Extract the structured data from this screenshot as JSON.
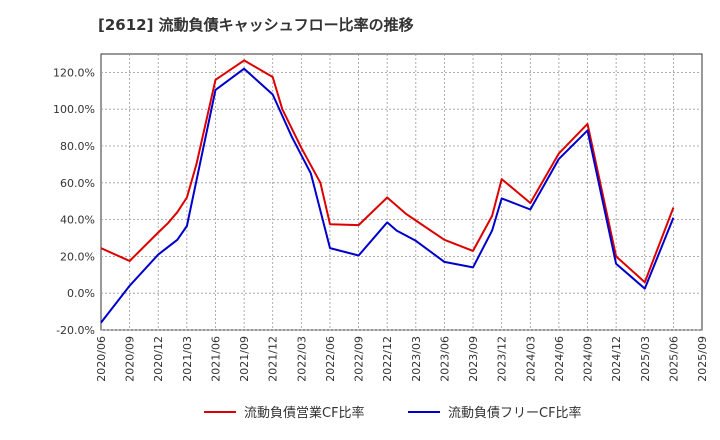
{
  "chart_data": {
    "type": "line",
    "title": "[2612]  流動負債キャッシュフロー比率の推移",
    "xlabel": "",
    "ylabel": "",
    "ylim": [
      -20,
      130
    ],
    "yticks": [
      -20,
      0,
      20,
      40,
      60,
      80,
      100,
      120
    ],
    "ytick_labels": [
      "-20.0%",
      "0.0%",
      "20.0%",
      "40.0%",
      "60.0%",
      "80.0%",
      "100.0%",
      "120.0%"
    ],
    "xtick_labels": [
      "2020/06",
      "2020/09",
      "2020/12",
      "2021/03",
      "2021/06",
      "2021/09",
      "2021/12",
      "2022/03",
      "2022/06",
      "2022/09",
      "2022/12",
      "2023/03",
      "2023/06",
      "2023/09",
      "2023/12",
      "2024/03",
      "2024/06",
      "2024/09",
      "2024/12",
      "2025/03",
      "2025/06",
      "2025/09"
    ],
    "grid": true,
    "legend_position": "bottom",
    "series": [
      {
        "name": "流動負債営業CF比率",
        "color": "#dd0000",
        "points": [
          [
            "2020/06",
            24.5
          ],
          [
            "2020/09",
            17.5
          ],
          [
            "2020/12",
            33
          ],
          [
            "2021/01",
            38
          ],
          [
            "2021/02",
            44
          ],
          [
            "2021/03",
            52
          ],
          [
            "2021/04",
            70
          ],
          [
            "2021/06",
            116
          ],
          [
            "2021/09",
            126.5
          ],
          [
            "2021/12",
            117.5
          ],
          [
            "2022/01",
            100
          ],
          [
            "2022/03",
            79
          ],
          [
            "2022/05",
            60
          ],
          [
            "2022/06",
            37.5
          ],
          [
            "2022/09",
            37
          ],
          [
            "2022/12",
            52
          ],
          [
            "2023/02",
            43
          ],
          [
            "2023/03",
            39.5
          ],
          [
            "2023/06",
            29
          ],
          [
            "2023/09",
            23
          ],
          [
            "2023/11",
            42
          ],
          [
            "2023/12",
            62
          ],
          [
            "2024/03",
            49
          ],
          [
            "2024/06",
            76
          ],
          [
            "2024/09",
            92
          ],
          [
            "2024/12",
            20
          ],
          [
            "2025/03",
            6
          ],
          [
            "2025/06",
            46.5
          ]
        ]
      },
      {
        "name": "流動負債フリーCF比率",
        "color": "#0000cc",
        "points": [
          [
            "2020/06",
            -16
          ],
          [
            "2020/09",
            4
          ],
          [
            "2020/12",
            21
          ],
          [
            "2021/02",
            29
          ],
          [
            "2021/03",
            36.5
          ],
          [
            "2021/06",
            110.5
          ],
          [
            "2021/09",
            122
          ],
          [
            "2021/12",
            108
          ],
          [
            "2022/02",
            85
          ],
          [
            "2022/04",
            65
          ],
          [
            "2022/06",
            24.5
          ],
          [
            "2022/09",
            20.5
          ],
          [
            "2022/12",
            38.5
          ],
          [
            "2023/01",
            34
          ],
          [
            "2023/03",
            28.5
          ],
          [
            "2023/06",
            17
          ],
          [
            "2023/09",
            14
          ],
          [
            "2023/11",
            34
          ],
          [
            "2023/12",
            51.5
          ],
          [
            "2024/03",
            45.5
          ],
          [
            "2024/06",
            73
          ],
          [
            "2024/09",
            88.5
          ],
          [
            "2024/12",
            16
          ],
          [
            "2025/03",
            2.5
          ],
          [
            "2025/06",
            41
          ]
        ]
      }
    ]
  }
}
